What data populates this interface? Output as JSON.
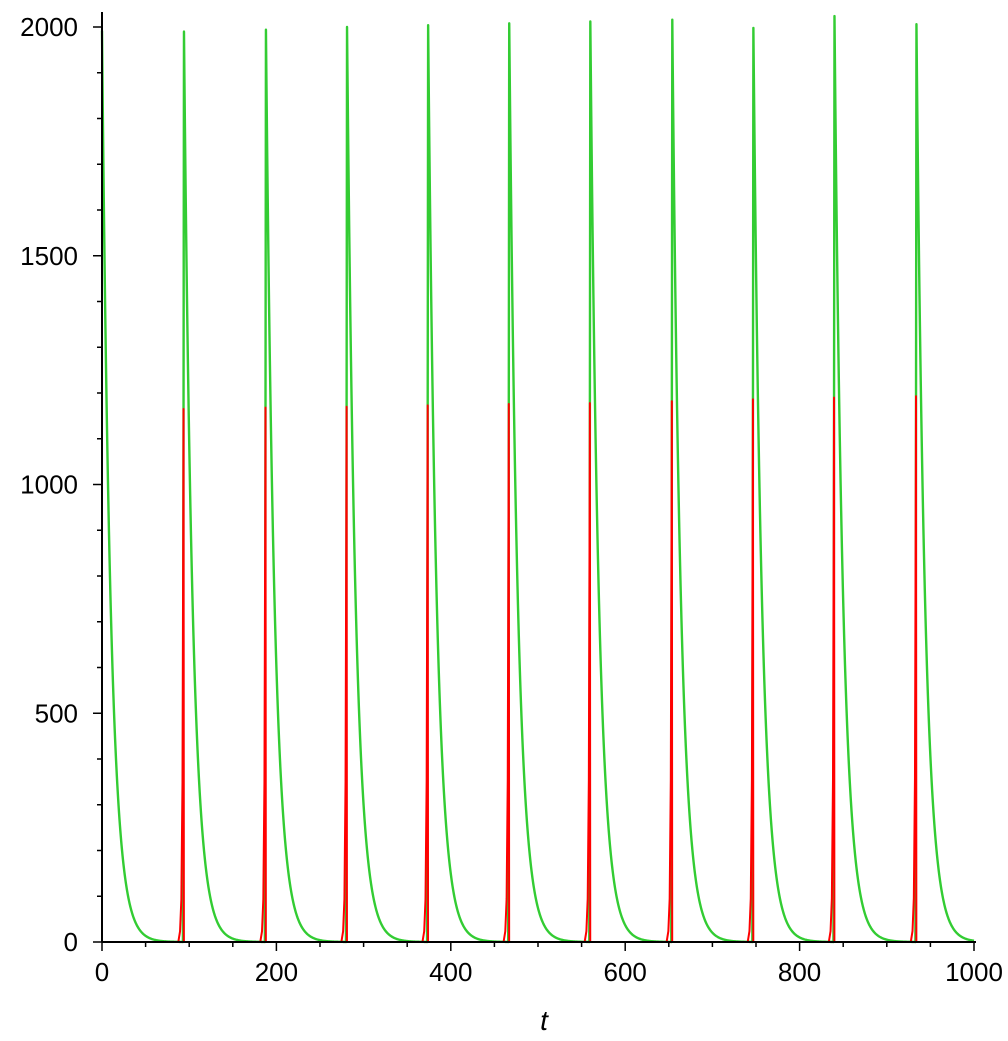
{
  "chart_data": {
    "type": "line",
    "title": "",
    "xlabel": "t",
    "ylabel": "",
    "xlim": [
      0,
      1000
    ],
    "ylim": [
      0,
      2000
    ],
    "x_ticks": [
      0,
      200,
      400,
      600,
      800,
      1000
    ],
    "x_tick_labels": [
      "0",
      "200",
      "400",
      "600",
      "800",
      "1000"
    ],
    "y_ticks": [
      0,
      500,
      1000,
      1500,
      2000
    ],
    "y_tick_labels": [
      "0",
      "500",
      "1000",
      "1500",
      "2000"
    ],
    "x_minor_step": 50,
    "y_minor_step": 100,
    "grid": false,
    "legend": "none",
    "series": [
      {
        "color": "#ff0000",
        "shape": "sharp spikes",
        "spikes": [
          {
            "t": 93.5,
            "peak": 1165
          },
          {
            "t": 187.5,
            "peak": 1168
          },
          {
            "t": 280.5,
            "peak": 1170
          },
          {
            "t": 373.5,
            "peak": 1173
          },
          {
            "t": 466.5,
            "peak": 1176
          },
          {
            "t": 559.5,
            "peak": 1178
          },
          {
            "t": 653.5,
            "peak": 1182
          },
          {
            "t": 746.5,
            "peak": 1186
          },
          {
            "t": 839.5,
            "peak": 1190
          },
          {
            "t": 933.5,
            "peak": 1193
          }
        ]
      },
      {
        "color": "#33cc33",
        "shape": "spike with exponential decay",
        "decay_constant": 10,
        "spikes": [
          {
            "t": 0,
            "peak": 1992
          },
          {
            "t": 94,
            "peak": 1990
          },
          {
            "t": 188,
            "peak": 1994
          },
          {
            "t": 281,
            "peak": 2000
          },
          {
            "t": 374,
            "peak": 2004
          },
          {
            "t": 467,
            "peak": 2008
          },
          {
            "t": 560,
            "peak": 2012
          },
          {
            "t": 654,
            "peak": 2016
          },
          {
            "t": 747,
            "peak": 1998
          },
          {
            "t": 840,
            "peak": 2024
          },
          {
            "t": 934,
            "peak": 2006
          }
        ]
      }
    ]
  }
}
